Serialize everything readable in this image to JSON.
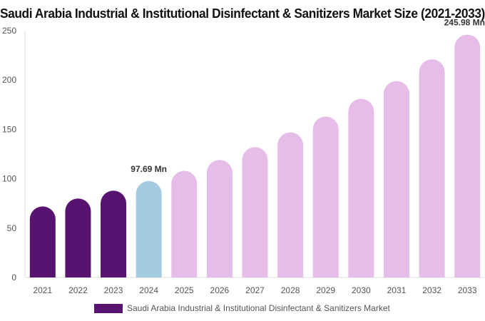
{
  "chart_data": {
    "type": "bar",
    "title": "Saudi Arabia Industrial & Institutional Disinfectant & Sanitizers Market Size (2021-2033)",
    "categories": [
      "2021",
      "2022",
      "2023",
      "2024",
      "2025",
      "2026",
      "2027",
      "2028",
      "2029",
      "2030",
      "2031",
      "2032",
      "2033"
    ],
    "series": [
      {
        "name": "Saudi Arabia Industrial & Institutional Disinfectant & Sanitizers Market",
        "values": [
          72,
          80,
          88,
          97.69,
          108,
          119,
          132,
          147,
          163,
          181,
          199,
          221,
          245.98
        ]
      }
    ],
    "bar_colors": [
      "#581270",
      "#581270",
      "#581270",
      "#a4cbe0",
      "#e6bde8",
      "#e6bde8",
      "#e6bde8",
      "#e6bde8",
      "#e6bde8",
      "#e6bde8",
      "#e6bde8",
      "#e6bde8",
      "#e6bde8"
    ],
    "legend_color": "#581270",
    "data_labels": [
      {
        "category": "2024",
        "text": "97.69 Mn"
      },
      {
        "category": "2033",
        "text": "245.98 Mn"
      }
    ],
    "y_ticks": [
      "0",
      "50",
      "100",
      "150",
      "200",
      "250"
    ],
    "ylim": [
      0,
      250
    ],
    "xlabel": "",
    "ylabel": "",
    "grid": false,
    "legend_position": "bottom"
  }
}
